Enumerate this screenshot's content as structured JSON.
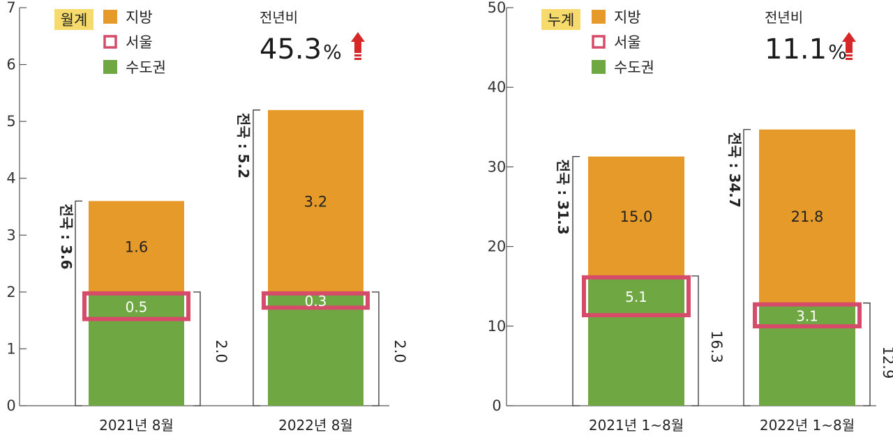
{
  "colors": {
    "regional": "#E59A2A",
    "seoul": "#D64B6A",
    "metro": "#6FA843",
    "badge": "#F6DB6C",
    "arrow": "#D62828",
    "axis": "#555555"
  },
  "chart_data": [
    {
      "type": "bar",
      "badge": "월계",
      "legend": [
        "지방",
        "서울",
        "수도권"
      ],
      "yoy_label": "전년비",
      "yoy_value": "45.3",
      "yoy_unit": "%",
      "categories": [
        "2021년 8월",
        "2022년 8월"
      ],
      "ylim": [
        0,
        7
      ],
      "yticks": [
        0,
        1,
        2,
        3,
        4,
        5,
        6,
        7
      ],
      "series": [
        {
          "name": "수도권",
          "values": [
            2.0,
            2.0
          ]
        },
        {
          "name": "지방",
          "values": [
            1.6,
            3.2
          ]
        }
      ],
      "seoul": [
        0.5,
        0.3
      ],
      "seoul_labels": [
        "0.5",
        "0.3"
      ],
      "regional_labels": [
        "1.6",
        "3.2"
      ],
      "metro_labels": [
        "2.0",
        "2.0"
      ],
      "totals": [
        3.6,
        5.2
      ],
      "total_labels": [
        "전국 : 3.6",
        "전국 : 5.2"
      ]
    },
    {
      "type": "bar",
      "badge": "누계",
      "legend": [
        "지방",
        "서울",
        "수도권"
      ],
      "yoy_label": "전년비",
      "yoy_value": "11.1",
      "yoy_unit": "%",
      "categories": [
        "2021년 1~8월",
        "2022년 1~8월"
      ],
      "ylim": [
        0,
        50
      ],
      "yticks": [
        0,
        10,
        20,
        30,
        40,
        50
      ],
      "series": [
        {
          "name": "수도권",
          "values": [
            16.3,
            12.9
          ]
        },
        {
          "name": "지방",
          "values": [
            15.0,
            21.8
          ]
        }
      ],
      "seoul": [
        5.1,
        3.1
      ],
      "seoul_labels": [
        "5.1",
        "3.1"
      ],
      "regional_labels": [
        "15.0",
        "21.8"
      ],
      "metro_labels": [
        "16.3",
        "12.9"
      ],
      "totals": [
        31.3,
        34.7
      ],
      "total_labels": [
        "전국 : 31.3",
        "전국 : 34.7"
      ]
    }
  ]
}
